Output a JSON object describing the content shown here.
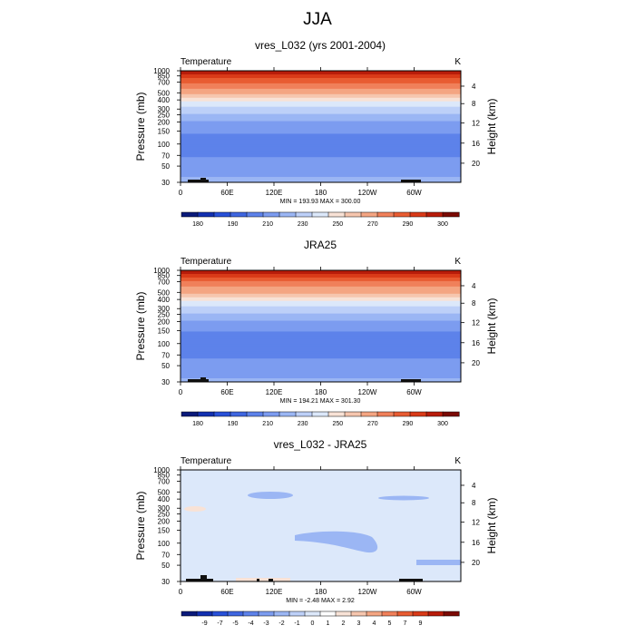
{
  "page": {
    "title": "JJA"
  },
  "chart_data": [
    {
      "type": "heatmap",
      "title": "vres_L032 (yrs 2001-2004)",
      "variable_label": "Temperature",
      "units_label": "K",
      "ylabel": "Pressure (mb)",
      "ylabel_right": "Height (km)",
      "x_ticks": [
        "0",
        "60E",
        "120E",
        "180",
        "120W",
        "60W"
      ],
      "pressure_ticks": [
        "30",
        "50",
        "70",
        "100",
        "150",
        "200",
        "250",
        "300",
        "400",
        "500",
        "700",
        "850",
        "1000"
      ],
      "height_ticks": [
        "20",
        "16",
        "12",
        "8",
        "4"
      ],
      "y_scale": "log",
      "ylim": [
        1000,
        30
      ],
      "stats": "MIN = 193.93  MAX = 300.00",
      "colorbar": {
        "colors": [
          "#0a1a7a",
          "#1230b0",
          "#2850d8",
          "#3f66e0",
          "#5d82ea",
          "#7c9cf0",
          "#9bb6f4",
          "#bdd0f8",
          "#dce8fa",
          "#f8e2d6",
          "#f6c6ae",
          "#f4a582",
          "#f0805a",
          "#e85c32",
          "#d93a18",
          "#b81c0a",
          "#7a0a04"
        ],
        "labels": [
          "180",
          "190",
          "210",
          "230",
          "250",
          "270",
          "290",
          "300"
        ]
      },
      "profile_by_pressure": {
        "pressure": [
          30,
          50,
          70,
          100,
          150,
          200,
          250,
          300,
          400,
          500,
          700,
          850,
          1000
        ],
        "temperature": [
          222,
          215,
          209,
          205,
          211,
          219,
          229,
          237,
          252,
          264,
          279,
          288,
          297
        ]
      }
    },
    {
      "type": "heatmap",
      "title": "JRA25",
      "variable_label": "Temperature",
      "units_label": "K",
      "ylabel": "Pressure (mb)",
      "ylabel_right": "Height (km)",
      "x_ticks": [
        "0",
        "60E",
        "120E",
        "180",
        "120W",
        "60W"
      ],
      "pressure_ticks": [
        "30",
        "50",
        "70",
        "100",
        "150",
        "200",
        "250",
        "300",
        "400",
        "500",
        "700",
        "850",
        "1000"
      ],
      "height_ticks": [
        "20",
        "16",
        "12",
        "8",
        "4"
      ],
      "y_scale": "log",
      "ylim": [
        1000,
        30
      ],
      "stats": "MIN = 194.21  MAX = 301.30",
      "colorbar": {
        "colors": [
          "#0a1a7a",
          "#1230b0",
          "#2850d8",
          "#3f66e0",
          "#5d82ea",
          "#7c9cf0",
          "#9bb6f4",
          "#bdd0f8",
          "#dce8fa",
          "#f8e2d6",
          "#f6c6ae",
          "#f4a582",
          "#f0805a",
          "#e85c32",
          "#d93a18",
          "#b81c0a",
          "#7a0a04"
        ],
        "labels": [
          "180",
          "190",
          "210",
          "230",
          "250",
          "270",
          "290",
          "300"
        ]
      },
      "profile_by_pressure": {
        "pressure": [
          30,
          50,
          70,
          100,
          150,
          200,
          250,
          300,
          400,
          500,
          700,
          850,
          1000
        ],
        "temperature": [
          222,
          214,
          208,
          205,
          210,
          218,
          228,
          237,
          251,
          263,
          278,
          287,
          298
        ]
      }
    },
    {
      "type": "heatmap",
      "title": "vres_L032 - JRA25",
      "variable_label": "Temperature",
      "units_label": "K",
      "ylabel": "Pressure (mb)",
      "ylabel_right": "Height (km)",
      "x_ticks": [
        "0",
        "60E",
        "120E",
        "180",
        "120W",
        "60W"
      ],
      "pressure_ticks": [
        "30",
        "50",
        "70",
        "100",
        "150",
        "200",
        "250",
        "300",
        "400",
        "500",
        "700",
        "850",
        "1000"
      ],
      "height_ticks": [
        "20",
        "16",
        "12",
        "8",
        "4"
      ],
      "y_scale": "log",
      "ylim": [
        1000,
        30
      ],
      "stats": "MIN =  -2.48  MAX =  2.92",
      "colorbar": {
        "colors": [
          "#0a1a7a",
          "#1230b0",
          "#2850d8",
          "#3f66e0",
          "#5d82ea",
          "#7c9cf0",
          "#9bb6f4",
          "#bdd0f8",
          "#dce8fa",
          "#ffffff",
          "#f8e2d6",
          "#f6c6ae",
          "#f4a582",
          "#f0805a",
          "#e85c32",
          "#d93a18",
          "#b81c0a",
          "#7a0a04"
        ],
        "labels": [
          "-9",
          "-7",
          "-5",
          "-4",
          "-3",
          "-2",
          "-1",
          "0",
          "1",
          "2",
          "3",
          "4",
          "5",
          "7",
          "9"
        ]
      },
      "difference_regions": [
        {
          "pressure_range": [
            30,
            70
          ],
          "value": -1
        },
        {
          "pressure_range": [
            70,
            500
          ],
          "value": -1.5
        },
        {
          "pressure_range": [
            500,
            850
          ],
          "value": -0.5
        },
        {
          "pressure_range": [
            850,
            1000
          ],
          "value": 0
        }
      ]
    }
  ]
}
